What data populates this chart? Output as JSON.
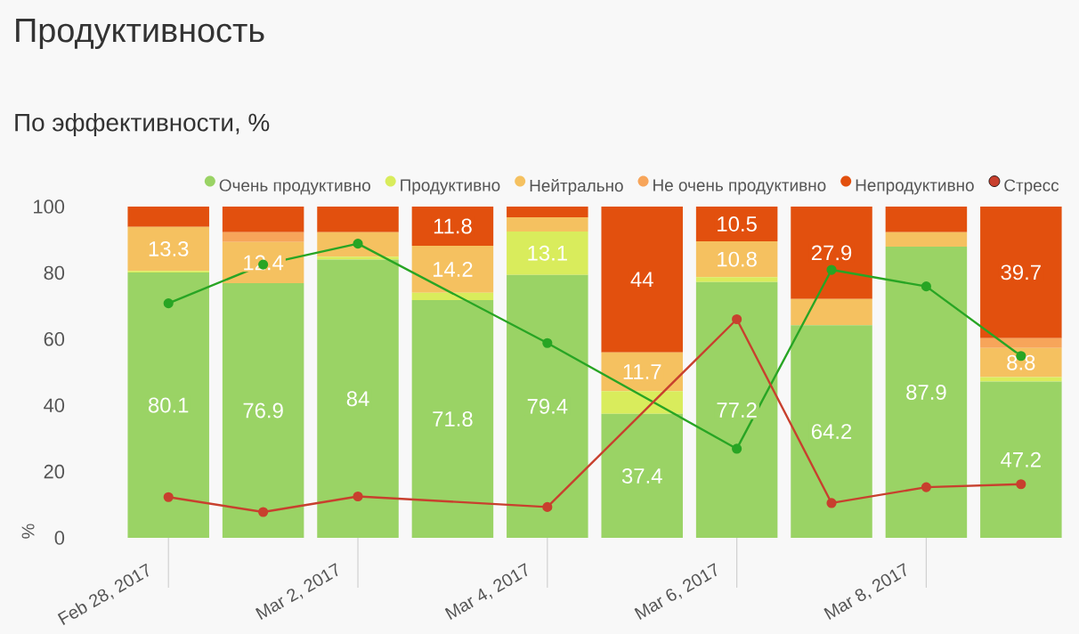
{
  "chart_data": {
    "type": "bar",
    "stacked": true,
    "title": "Продуктивность",
    "subtitle": "По эффективности, %",
    "ylabel": "%",
    "categories": [
      "Feb 28, 2017",
      null,
      "Mar 2, 2017",
      null,
      "Mar 4, 2017",
      null,
      "Mar 6, 2017",
      null,
      "Mar 8, 2017",
      null
    ],
    "ylim": [
      0,
      100
    ],
    "yticks": [
      0,
      20,
      40,
      60,
      80,
      100
    ],
    "legend": "top right",
    "marker": "circle",
    "line_style": "solid",
    "series": [
      {
        "name": "Очень продуктивно",
        "color": "#9ad365",
        "values": [
          80.1,
          76.9,
          84,
          71.8,
          79.4,
          37.4,
          77.2,
          64.2,
          87.9,
          47.2
        ],
        "value_labels": [
          "80.1",
          "76.9",
          "84",
          "71.8",
          "79.4",
          "37.4",
          "77.2",
          "64.2",
          "87.9",
          "47.2"
        ]
      },
      {
        "name": "Продуктивно",
        "color": "#d9ec5c",
        "values": [
          0.5,
          0,
          0.9,
          2.2,
          13.1,
          6.9,
          1.5,
          0,
          0,
          1.3
        ],
        "value_labels": [
          null,
          null,
          null,
          null,
          "13.1",
          null,
          null,
          null,
          null,
          null
        ]
      },
      {
        "name": "Нейтрально",
        "color": "#f5c160",
        "values": [
          13.3,
          12.4,
          7.4,
          14.2,
          4.3,
          11.7,
          10.8,
          7.9,
          4.4,
          8.8
        ],
        "value_labels": [
          "13.3",
          "12.4",
          null,
          "14.2",
          null,
          "11.7",
          "10.8",
          null,
          null,
          "8.8"
        ]
      },
      {
        "name": "Не очень продуктивно",
        "color": "#f7a55a",
        "values": [
          0,
          3.0,
          0,
          0,
          0,
          0,
          0,
          0,
          0,
          3.0
        ]
      },
      {
        "name": "Непродуктивно",
        "color": "#e2500e",
        "values": [
          6.1,
          7.7,
          7.7,
          11.8,
          3.2,
          44,
          10.5,
          27.9,
          7.7,
          39.7
        ],
        "value_labels": [
          null,
          null,
          null,
          "11.8",
          null,
          "44",
          "10.5",
          "27.9",
          null,
          "39.7"
        ]
      },
      {
        "type": "line",
        "color": "#28a524",
        "values": [
          70.8,
          82.5,
          88.8,
          null,
          58.8,
          null,
          26.9,
          80.9,
          75.9,
          54.9
        ]
      },
      {
        "type": "line",
        "name": "Стресс",
        "color": "#c8402e",
        "values": [
          12.3,
          7.8,
          12.5,
          null,
          9.3,
          null,
          66.0,
          10.5,
          15.3,
          16.2
        ]
      }
    ]
  }
}
